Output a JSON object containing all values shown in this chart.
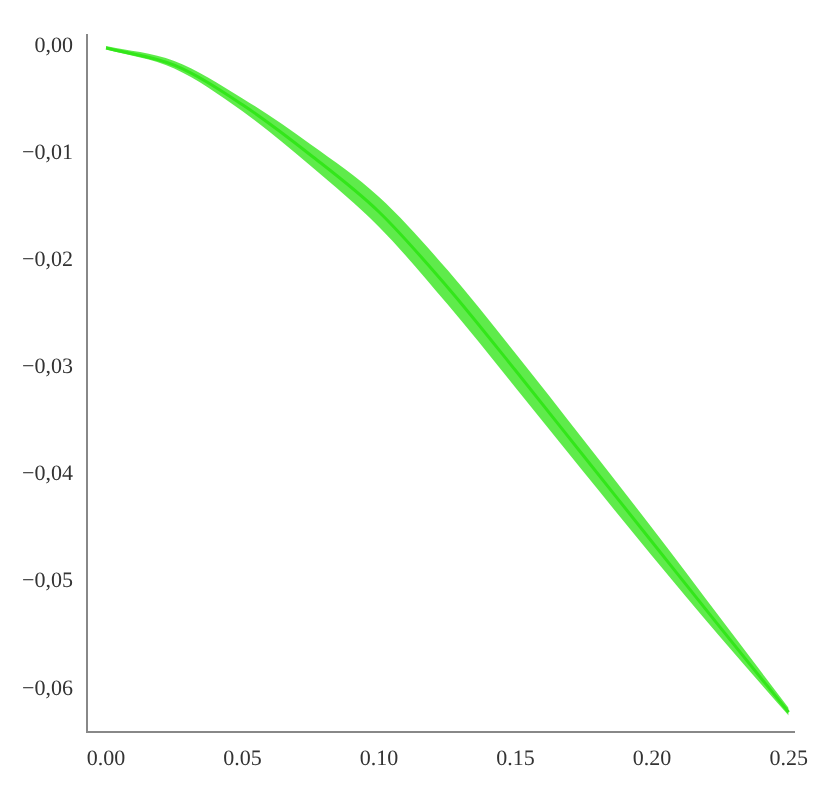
{
  "chart_data": {
    "type": "line",
    "x": [
      0,
      0.025,
      0.05,
      0.075,
      0.1,
      0.125,
      0.15,
      0.175,
      0.2,
      0.225,
      0.25
    ],
    "series": [
      {
        "color": "#33e61a",
        "values": [
          -0.0002,
          -0.0018,
          -0.0055,
          -0.0102,
          -0.0155,
          -0.0225,
          -0.0303,
          -0.0383,
          -0.0463,
          -0.0543,
          -0.0622
        ],
        "lower": [
          -0.0003,
          -0.0021,
          -0.0061,
          -0.0112,
          -0.0169,
          -0.0241,
          -0.0319,
          -0.0398,
          -0.0476,
          -0.0552,
          -0.0625
        ],
        "upper": [
          0,
          -0.0014,
          -0.0049,
          -0.0092,
          -0.0141,
          -0.0209,
          -0.0287,
          -0.0368,
          -0.045,
          -0.0534,
          -0.0618
        ]
      }
    ],
    "xlim": [
      -0.007,
      0.252
    ],
    "ylim": [
      -0.064,
      0.001
    ],
    "xticks": [
      {
        "value": 0,
        "label": "0.00"
      },
      {
        "value": 0.05,
        "label": "0.05"
      },
      {
        "value": 0.1,
        "label": "0.10"
      },
      {
        "value": 0.15,
        "label": "0.15"
      },
      {
        "value": 0.2,
        "label": "0.20"
      },
      {
        "value": 0.25,
        "label": "0.25"
      }
    ],
    "yticks": [
      {
        "value": 0,
        "label": "0,00"
      },
      {
        "value": -0.01,
        "label": "−0,01"
      },
      {
        "value": -0.02,
        "label": "−0,02"
      },
      {
        "value": -0.03,
        "label": "−0,03"
      },
      {
        "value": -0.04,
        "label": "−0,04"
      },
      {
        "value": -0.05,
        "label": "−0,05"
      },
      {
        "value": -0.06,
        "label": "−0,06"
      }
    ],
    "grid": false,
    "legend": false,
    "marker": "none",
    "line_style": "solid"
  }
}
